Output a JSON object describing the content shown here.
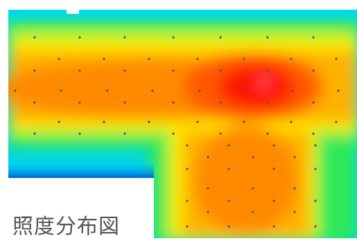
{
  "caption": "照度分布図",
  "colors": {
    "scale": [
      "#0033cc",
      "#00b3ff",
      "#00e0d0",
      "#2ee85a",
      "#c8f21a",
      "#ffe600",
      "#ffb000",
      "#ff7a00",
      "#ff3300",
      "#ff0000"
    ],
    "light_point": "#555566",
    "background": "#ffffff"
  }
}
